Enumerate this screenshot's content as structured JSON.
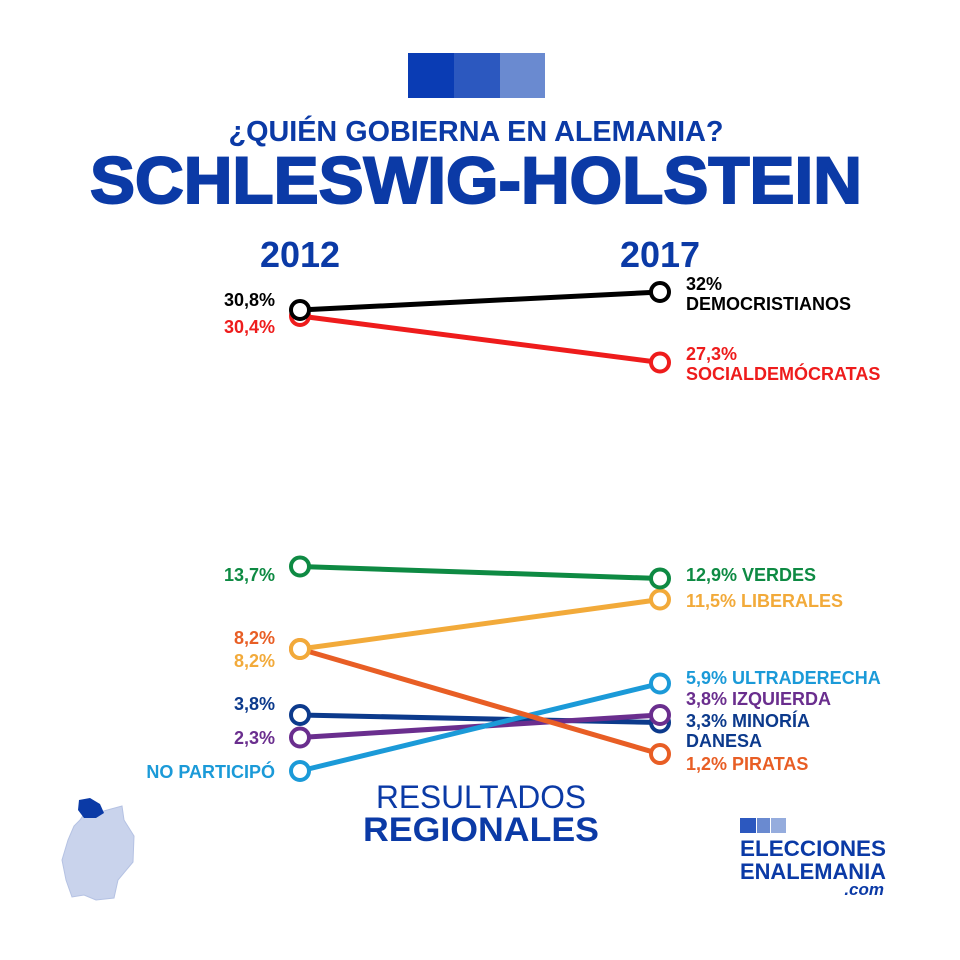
{
  "header": {
    "subtitle": "¿QUIÉN GOBIERNA EN ALEMANIA?",
    "title": "SCHLESWIG-HOLSTEIN",
    "bar_colors": [
      "#0a3cb4",
      "#2c58bf",
      "#6a8ad0"
    ]
  },
  "footer": {
    "line1": "RESULTADOS",
    "line2": "REGIONALES"
  },
  "logo": {
    "line1": "ELECCIONES",
    "line2": "ENALEMANIA",
    "line3": ".com",
    "bar_colors": [
      "#2c58bf",
      "#6a8ad0",
      "#95acdd"
    ]
  },
  "chart_data": {
    "type": "slope",
    "title": "SCHLESWIG-HOLSTEIN",
    "x": [
      "2012",
      "2017"
    ],
    "unit": "%",
    "ylim": [
      0,
      32
    ],
    "series": [
      {
        "name": "DEMOCRISTIANOS",
        "color": "#000000",
        "values": [
          30.8,
          32
        ],
        "left_label": [
          "30,8%"
        ],
        "right_label": [
          "32%",
          "DEMOCRISTIANOS"
        ]
      },
      {
        "name": "SOCIALDEMÓCRATAS",
        "color": "#ee1c1c",
        "values": [
          30.4,
          27.3
        ],
        "left_label": [
          "30,4%"
        ],
        "right_label": [
          "27,3%",
          "SOCIALDEMÓCRATAS"
        ]
      },
      {
        "name": "VERDES",
        "color": "#0e8a43",
        "values": [
          13.7,
          12.9
        ],
        "left_label": [
          "13,7%"
        ],
        "right_label": [
          "12,9% VERDES"
        ]
      },
      {
        "name": "LIBERALES",
        "color": "#f2aa3a",
        "values": [
          8.2,
          11.5
        ],
        "left_label": [
          "8,2%"
        ],
        "right_label": [
          "11,5% LIBERALES"
        ]
      },
      {
        "name": "PIRATAS",
        "color": "#e85e25",
        "values": [
          8.2,
          1.2
        ],
        "left_label": [
          "8,2%"
        ],
        "right_label": [
          "1,2% PIRATAS"
        ]
      },
      {
        "name": "ULTRADERECHA",
        "color": "#1b9ad8",
        "values": [
          null,
          5.9
        ],
        "left_label": [
          "NO PARTICIPÓ"
        ],
        "right_label": [
          "5,9% ULTRADERECHA"
        ]
      },
      {
        "name": "IZQUIERDA",
        "color": "#6a2e8e",
        "values": [
          2.3,
          3.8
        ],
        "left_label": [
          "2,3%"
        ],
        "right_label": [
          "3,8% IZQUIERDA"
        ]
      },
      {
        "name": "MINORÍA DANESA",
        "color": "#0c3a8c",
        "values": [
          3.8,
          3.3
        ],
        "left_label": [
          "3,8%"
        ],
        "right_label": [
          "3,3% MINORÍA",
          "DANESA"
        ]
      }
    ]
  }
}
